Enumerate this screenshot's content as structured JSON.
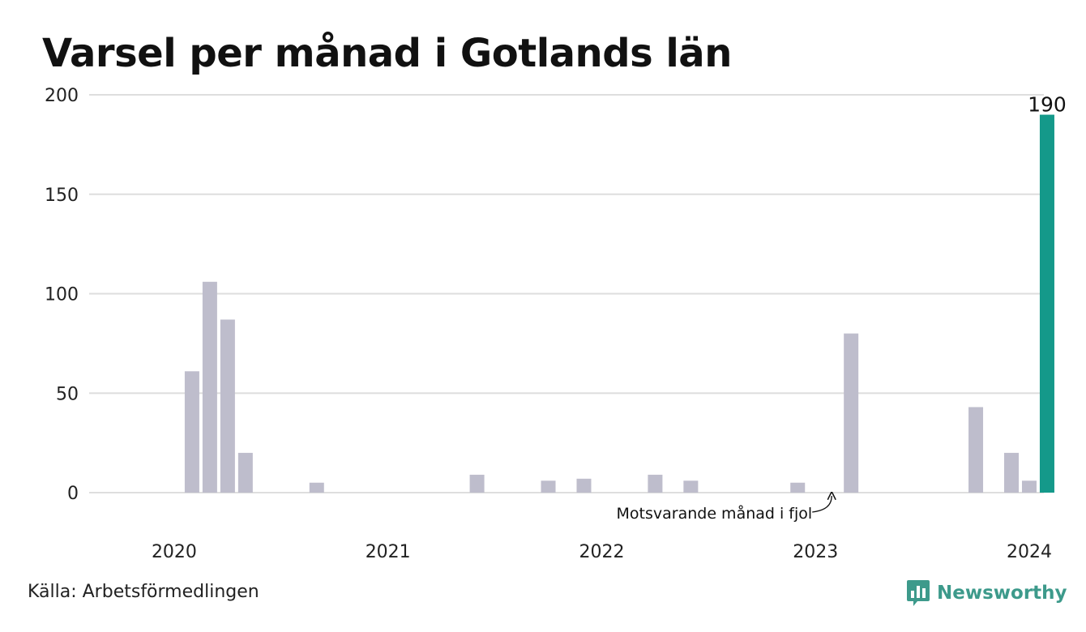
{
  "title": "Varsel per månad i Gotlands län",
  "source": "Källa: Arbetsförmedlingen",
  "brand": {
    "name": "Newsworthy",
    "icon": "newsworthy-logo-icon",
    "color": "#3d9a8b"
  },
  "chart_data": {
    "type": "bar",
    "title": "Varsel per månad i Gotlands län",
    "xlabel": "",
    "ylabel": "",
    "ylim": [
      0,
      200
    ],
    "yticks": [
      0,
      50,
      100,
      150,
      200
    ],
    "xticks": [
      {
        "label": "2020",
        "month": "2020-01"
      },
      {
        "label": "2021",
        "month": "2021-01"
      },
      {
        "label": "2022",
        "month": "2022-01"
      },
      {
        "label": "2023",
        "month": "2023-01"
      },
      {
        "label": "2024",
        "month": "2024-01"
      }
    ],
    "grid": true,
    "colors": {
      "bar": "#bebdcc",
      "highlight": "#14998a",
      "grid": "#dedede"
    },
    "months": [
      "2019-10",
      "2019-11",
      "2019-12",
      "2020-01",
      "2020-02",
      "2020-03",
      "2020-04",
      "2020-05",
      "2020-06",
      "2020-07",
      "2020-08",
      "2020-09",
      "2020-10",
      "2020-11",
      "2020-12",
      "2021-01",
      "2021-02",
      "2021-03",
      "2021-04",
      "2021-05",
      "2021-06",
      "2021-07",
      "2021-08",
      "2021-09",
      "2021-10",
      "2021-11",
      "2021-12",
      "2022-01",
      "2022-02",
      "2022-03",
      "2022-04",
      "2022-05",
      "2022-06",
      "2022-07",
      "2022-08",
      "2022-09",
      "2022-10",
      "2022-11",
      "2022-12",
      "2023-01",
      "2023-02",
      "2023-03",
      "2023-04",
      "2023-05",
      "2023-06",
      "2023-07",
      "2023-08",
      "2023-09",
      "2023-10",
      "2023-11",
      "2023-12",
      "2024-01",
      "2024-02"
    ],
    "values": [
      0,
      0,
      0,
      0,
      61,
      106,
      87,
      20,
      0,
      0,
      0,
      5,
      0,
      0,
      0,
      0,
      0,
      0,
      0,
      0,
      9,
      0,
      0,
      0,
      6,
      0,
      7,
      0,
      0,
      0,
      9,
      0,
      6,
      0,
      0,
      0,
      0,
      0,
      5,
      0,
      0,
      80,
      0,
      0,
      0,
      0,
      0,
      0,
      43,
      0,
      20,
      6,
      190
    ],
    "highlight": {
      "month": "2024-02",
      "value": 190,
      "label": "190"
    },
    "annotation": {
      "text": "Motsvarande månad i fjol",
      "month": "2023-02"
    }
  }
}
